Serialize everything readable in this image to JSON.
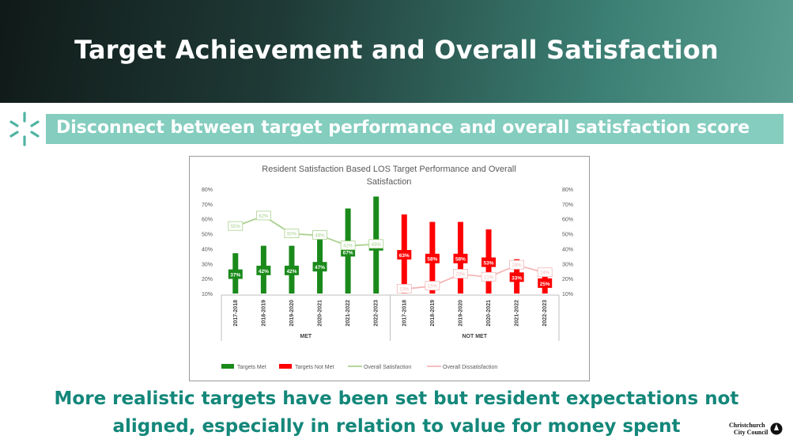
{
  "header": {
    "title": "Target Achievement and Overall Satisfaction",
    "subtitle": "Disconnect between target performance and overall satisfaction score"
  },
  "footer": {
    "text_line1": "More realistic targets have been set but resident expectations not",
    "text_line2": "aligned, especially in relation to value for money spent",
    "logo_line1": "Christchurch",
    "logo_line2": "City Council"
  },
  "colors": {
    "accent": "#84cdbf",
    "met": "#1a8a1a",
    "not_met": "#ff0000",
    "satisfaction": "#a9d18e",
    "dissatisfaction": "#f4b6b6",
    "bottom_text": "#13877a"
  },
  "chart_data": {
    "type": "bar",
    "title_line1": "Resident Satisfaction Based LOS Target Performance and Overall",
    "title_line2": "Satisfaction",
    "ylim": [
      0.1,
      0.8
    ],
    "yticks": [
      "10%",
      "20%",
      "30%",
      "40%",
      "50%",
      "60%",
      "70%",
      "80%"
    ],
    "grid": false,
    "groups": [
      {
        "label": "MET",
        "categories": [
          "2017-2018",
          "2018-2019",
          "2019-2020",
          "2020-2021",
          "2021-2022",
          "2022-2023"
        ],
        "bar_series": "Targets Met",
        "bar_values": [
          0.37,
          0.42,
          0.42,
          0.47,
          0.67,
          0.75
        ],
        "bar_labels": [
          "37%",
          "42%",
          "42%",
          "47%",
          "67%",
          "75%"
        ],
        "line_series": "Overall Satisfaction",
        "line_values": [
          0.55,
          0.62,
          0.5,
          0.49,
          0.42,
          0.43
        ],
        "line_labels": [
          "55%",
          "62%",
          "50%",
          "49%",
          "42%",
          "43%"
        ]
      },
      {
        "label": "NOT MET",
        "categories": [
          "2017-2018",
          "2018-2019",
          "2019-2020",
          "2020-2021",
          "2021-2022",
          "2022-2023"
        ],
        "bar_series": "Targets Not Met",
        "bar_values": [
          0.63,
          0.58,
          0.58,
          0.53,
          0.33,
          0.25
        ],
        "bar_labels": [
          "63%",
          "58%",
          "58%",
          "53%",
          "33%",
          "25%"
        ],
        "line_series": "Overall Dissatisfaction",
        "line_values": [
          0.13,
          0.15,
          0.23,
          0.21,
          0.29,
          0.24
        ],
        "line_labels": [
          "13%",
          "15%",
          "23%",
          "21%",
          "29%",
          "24%"
        ]
      }
    ],
    "legend": [
      "Targets Met",
      "Targets Not Met",
      "Overall Satisfaction",
      "Overall Dissatisfaction"
    ],
    "legend_position": "bottom"
  }
}
